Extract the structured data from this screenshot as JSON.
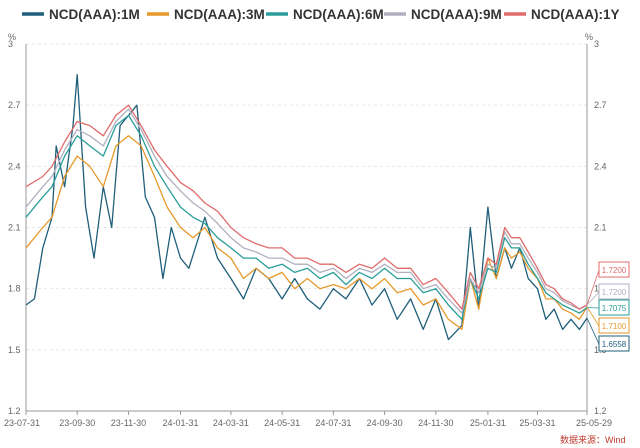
{
  "chart_data": {
    "type": "line",
    "unit_left": "%",
    "unit_right": "%",
    "y_ticks": [
      "1.2",
      "1.5",
      "1.8",
      "2.1",
      "2.4",
      "2.7",
      "3"
    ],
    "ylim": [
      1.2,
      3.0
    ],
    "x_ticks": [
      "23-07-31",
      "23-09-30",
      "23-11-30",
      "24-01-31",
      "24-03-31",
      "24-05-31",
      "24-07-31",
      "24-09-30",
      "24-11-30",
      "25-01-31",
      "25-03-31",
      "25-05-29"
    ],
    "source": "数据来源：Wind",
    "series": [
      {
        "name": "NCD(AAA):1M",
        "color": "#1f5f7a",
        "end_label": "1.6558",
        "x": [
          "23-07-31",
          "23-08-10",
          "23-08-20",
          "23-08-31",
          "23-09-05",
          "23-09-15",
          "23-09-25",
          "23-09-30",
          "23-10-10",
          "23-10-20",
          "23-10-31",
          "23-11-10",
          "23-11-20",
          "23-11-30",
          "23-12-10",
          "23-12-20",
          "23-12-31",
          "24-01-10",
          "24-01-20",
          "24-01-31",
          "24-02-10",
          "24-02-29",
          "24-03-15",
          "24-03-31",
          "24-04-15",
          "24-04-30",
          "24-05-15",
          "24-05-31",
          "24-06-15",
          "24-06-30",
          "24-07-15",
          "24-07-31",
          "24-08-15",
          "24-08-31",
          "24-09-15",
          "24-09-30",
          "24-10-15",
          "24-10-31",
          "24-11-15",
          "24-11-30",
          "24-12-15",
          "24-12-31",
          "25-01-10",
          "25-01-20",
          "25-01-31",
          "25-02-10",
          "25-02-20",
          "25-02-28",
          "25-03-10",
          "25-03-20",
          "25-03-31",
          "25-04-10",
          "25-04-20",
          "25-04-30",
          "25-05-10",
          "25-05-20",
          "25-05-29"
        ],
        "values": [
          1.72,
          1.75,
          2.0,
          2.15,
          2.5,
          2.3,
          2.6,
          2.85,
          2.2,
          1.95,
          2.3,
          2.1,
          2.6,
          2.65,
          2.7,
          2.25,
          2.15,
          1.85,
          2.1,
          1.95,
          1.9,
          2.15,
          1.95,
          1.85,
          1.75,
          1.9,
          1.85,
          1.75,
          1.85,
          1.75,
          1.7,
          1.8,
          1.75,
          1.85,
          1.72,
          1.8,
          1.65,
          1.75,
          1.6,
          1.75,
          1.55,
          1.62,
          2.1,
          1.7,
          2.2,
          1.85,
          2.0,
          1.9,
          2.0,
          1.85,
          1.8,
          1.65,
          1.7,
          1.6,
          1.65,
          1.6,
          1.6558
        ]
      },
      {
        "name": "NCD(AAA):3M",
        "color": "#e6992b",
        "end_label": "1.7100",
        "x": [
          "23-07-31",
          "23-08-20",
          "23-08-31",
          "23-09-15",
          "23-09-30",
          "23-10-15",
          "23-10-31",
          "23-11-15",
          "23-11-30",
          "23-12-15",
          "23-12-31",
          "24-01-15",
          "24-01-31",
          "24-02-15",
          "24-02-29",
          "24-03-15",
          "24-03-31",
          "24-04-15",
          "24-04-30",
          "24-05-15",
          "24-05-31",
          "24-06-15",
          "24-06-30",
          "24-07-15",
          "24-07-31",
          "24-08-15",
          "24-08-31",
          "24-09-15",
          "24-09-30",
          "24-10-15",
          "24-10-31",
          "24-11-15",
          "24-11-30",
          "24-12-15",
          "24-12-31",
          "25-01-10",
          "25-01-20",
          "25-01-31",
          "25-02-10",
          "25-02-20",
          "25-02-28",
          "25-03-10",
          "25-03-20",
          "25-03-31",
          "25-04-10",
          "25-04-20",
          "25-04-30",
          "25-05-10",
          "25-05-20",
          "25-05-29"
        ],
        "values": [
          2.0,
          2.1,
          2.15,
          2.35,
          2.45,
          2.4,
          2.3,
          2.5,
          2.55,
          2.5,
          2.35,
          2.2,
          2.1,
          2.05,
          2.1,
          2.0,
          1.95,
          1.85,
          1.9,
          1.85,
          1.88,
          1.8,
          1.85,
          1.8,
          1.82,
          1.8,
          1.85,
          1.8,
          1.85,
          1.78,
          1.8,
          1.72,
          1.75,
          1.65,
          1.6,
          1.85,
          1.7,
          1.95,
          1.85,
          2.0,
          1.95,
          1.98,
          1.9,
          1.85,
          1.75,
          1.75,
          1.7,
          1.68,
          1.65,
          1.71
        ]
      },
      {
        "name": "NCD(AAA):6M",
        "color": "#2a9d9a",
        "end_label": "1.7075",
        "x": [
          "23-07-31",
          "23-08-20",
          "23-08-31",
          "23-09-15",
          "23-09-30",
          "23-10-15",
          "23-10-31",
          "23-11-15",
          "23-11-30",
          "23-12-15",
          "23-12-31",
          "24-01-15",
          "24-01-31",
          "24-02-15",
          "24-02-29",
          "24-03-15",
          "24-03-31",
          "24-04-15",
          "24-04-30",
          "24-05-15",
          "24-05-31",
          "24-06-15",
          "24-06-30",
          "24-07-15",
          "24-07-31",
          "24-08-15",
          "24-08-31",
          "24-09-15",
          "24-09-30",
          "24-10-15",
          "24-10-31",
          "24-11-15",
          "24-11-30",
          "24-12-15",
          "24-12-31",
          "25-01-10",
          "25-01-20",
          "25-01-31",
          "25-02-10",
          "25-02-20",
          "25-02-28",
          "25-03-10",
          "25-03-20",
          "25-03-31",
          "25-04-10",
          "25-04-20",
          "25-04-30",
          "25-05-10",
          "25-05-20",
          "25-05-29"
        ],
        "values": [
          2.15,
          2.25,
          2.3,
          2.45,
          2.55,
          2.5,
          2.45,
          2.6,
          2.65,
          2.55,
          2.4,
          2.3,
          2.2,
          2.15,
          2.12,
          2.05,
          2.0,
          1.95,
          1.95,
          1.9,
          1.92,
          1.88,
          1.9,
          1.85,
          1.88,
          1.82,
          1.88,
          1.85,
          1.9,
          1.85,
          1.85,
          1.78,
          1.8,
          1.72,
          1.65,
          1.85,
          1.75,
          1.9,
          1.88,
          2.05,
          2.0,
          2.0,
          1.92,
          1.85,
          1.78,
          1.75,
          1.72,
          1.7,
          1.68,
          1.7075
        ]
      },
      {
        "name": "NCD(AAA):9M",
        "color": "#b0b0c0",
        "end_label": "1.7200",
        "x": [
          "23-07-31",
          "23-08-20",
          "23-08-31",
          "23-09-15",
          "23-09-30",
          "23-10-15",
          "23-10-31",
          "23-11-15",
          "23-11-30",
          "23-12-15",
          "23-12-31",
          "24-01-15",
          "24-01-31",
          "24-02-15",
          "24-02-29",
          "24-03-15",
          "24-03-31",
          "24-04-15",
          "24-04-30",
          "24-05-15",
          "24-05-31",
          "24-06-15",
          "24-06-30",
          "24-07-15",
          "24-07-31",
          "24-08-15",
          "24-08-31",
          "24-09-15",
          "24-09-30",
          "24-10-15",
          "24-10-31",
          "24-11-15",
          "24-11-30",
          "24-12-15",
          "24-12-31",
          "25-01-10",
          "25-01-20",
          "25-01-31",
          "25-02-10",
          "25-02-20",
          "25-02-28",
          "25-03-10",
          "25-03-20",
          "25-03-31",
          "25-04-10",
          "25-04-20",
          "25-04-30",
          "25-05-10",
          "25-05-20",
          "25-05-29"
        ],
        "values": [
          2.2,
          2.3,
          2.35,
          2.48,
          2.58,
          2.55,
          2.5,
          2.62,
          2.68,
          2.58,
          2.45,
          2.35,
          2.28,
          2.22,
          2.18,
          2.12,
          2.05,
          2.0,
          1.98,
          1.95,
          1.95,
          1.92,
          1.92,
          1.88,
          1.9,
          1.85,
          1.9,
          1.88,
          1.92,
          1.88,
          1.88,
          1.8,
          1.82,
          1.75,
          1.68,
          1.85,
          1.78,
          1.92,
          1.9,
          2.08,
          2.02,
          2.02,
          1.95,
          1.88,
          1.8,
          1.78,
          1.74,
          1.72,
          1.7,
          1.72
        ]
      },
      {
        "name": "NCD(AAA):1Y",
        "color": "#e06b6b",
        "end_label": "1.7200",
        "x": [
          "23-07-31",
          "23-08-20",
          "23-08-31",
          "23-09-15",
          "23-09-30",
          "23-10-15",
          "23-10-31",
          "23-11-15",
          "23-11-30",
          "23-12-15",
          "23-12-31",
          "24-01-15",
          "24-01-31",
          "24-02-15",
          "24-02-29",
          "24-03-15",
          "24-03-31",
          "24-04-15",
          "24-04-30",
          "24-05-15",
          "24-05-31",
          "24-06-15",
          "24-06-30",
          "24-07-15",
          "24-07-31",
          "24-08-15",
          "24-08-31",
          "24-09-15",
          "24-09-30",
          "24-10-15",
          "24-10-31",
          "24-11-15",
          "24-11-30",
          "24-12-15",
          "24-12-31",
          "25-01-10",
          "25-01-20",
          "25-01-31",
          "25-02-10",
          "25-02-20",
          "25-02-28",
          "25-03-10",
          "25-03-20",
          "25-03-31",
          "25-04-10",
          "25-04-20",
          "25-04-30",
          "25-05-10",
          "25-05-20",
          "25-05-29"
        ],
        "values": [
          2.3,
          2.35,
          2.4,
          2.52,
          2.62,
          2.6,
          2.55,
          2.65,
          2.7,
          2.6,
          2.48,
          2.4,
          2.32,
          2.28,
          2.22,
          2.18,
          2.1,
          2.05,
          2.02,
          2.0,
          2.0,
          1.95,
          1.95,
          1.92,
          1.92,
          1.88,
          1.92,
          1.9,
          1.95,
          1.9,
          1.9,
          1.82,
          1.85,
          1.78,
          1.7,
          1.88,
          1.8,
          1.95,
          1.92,
          2.1,
          2.05,
          2.05,
          1.98,
          1.9,
          1.82,
          1.8,
          1.75,
          1.73,
          1.7,
          1.72
        ]
      }
    ]
  }
}
